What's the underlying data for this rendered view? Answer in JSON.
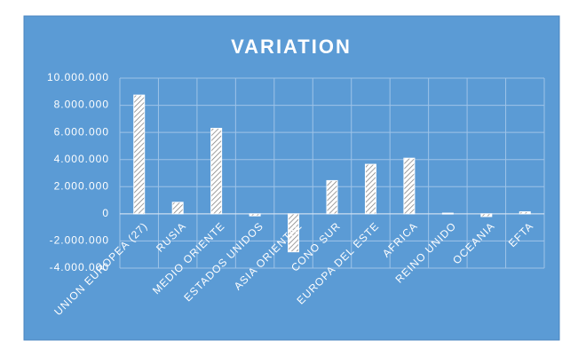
{
  "chart_data": {
    "type": "bar",
    "title": "VARIATION",
    "categories": [
      "UNION EUROPEA (27)",
      "RUSIA",
      "MEDIO ORIENTE",
      "ESTADOS UNIDOS",
      "ASIA ORIENTAL",
      "CONO SUR",
      "EUROPA DEL ESTE",
      "AFRICA",
      "REINO UNIDO",
      "OCEANIA",
      "EFTA"
    ],
    "values": [
      8750000,
      850000,
      6300000,
      -150000,
      -2800000,
      2450000,
      3650000,
      4100000,
      50000,
      -200000,
      150000
    ],
    "color": "#ffffff",
    "ylim": [
      -4000000,
      10000000
    ],
    "yticks": [
      {
        "value": -4000000,
        "label": "-4.000.000"
      },
      {
        "value": -2000000,
        "label": "-2.000.000"
      },
      0,
      {
        "value": 2000000,
        "label": "2.000.000"
      },
      {
        "value": 4000000,
        "label": "4.000.000"
      },
      {
        "value": 6000000,
        "label": "6.000.000"
      },
      {
        "value": 8000000,
        "label": "8.000.000"
      },
      {
        "value": 10000000,
        "label": "10.000.000"
      }
    ],
    "grid": true
  }
}
